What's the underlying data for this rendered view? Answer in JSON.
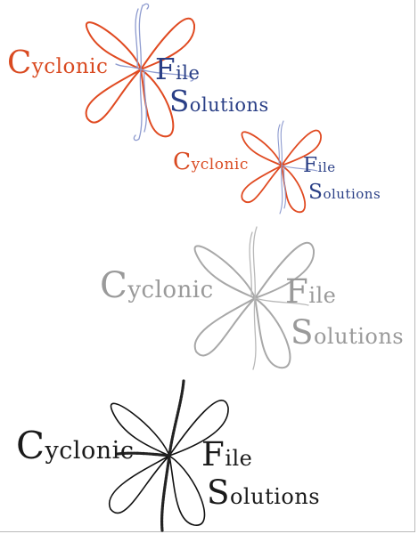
{
  "logos": [
    {
      "variant": "color-large",
      "colors": {
        "text_primary": "#d94a21",
        "text_secondary": "#2a3f86",
        "petals": "#e04a21",
        "accents": "#8e9bcf"
      },
      "icon": "cyclone-petal-icon",
      "word1": "Cyclonic",
      "word2": "File",
      "word3": "Solutions"
    },
    {
      "variant": "color-small",
      "colors": {
        "text_primary": "#d94a21",
        "text_secondary": "#2a3f86",
        "petals": "#e04a21",
        "accents": "#8e9bcf"
      },
      "icon": "cyclone-petal-icon",
      "word1": "Cyclonic",
      "word2": "File",
      "word3": "Solutions"
    },
    {
      "variant": "grayscale",
      "colors": {
        "text_primary": "#9a9a9a",
        "text_secondary": "#9a9a9a",
        "petals": "#a8a8a8",
        "accents": "#b8b8b8"
      },
      "icon": "cyclone-petal-icon",
      "word1": "Cyclonic",
      "word2": "File",
      "word3": "Solutions"
    },
    {
      "variant": "black",
      "colors": {
        "text_primary": "#1a1a1a",
        "text_secondary": "#1a1a1a",
        "petals": "#111111",
        "accents": "#222222"
      },
      "icon": "cyclone-petal-icon",
      "word1": "Cyclonic",
      "word2": "File",
      "word3": "Solutions"
    }
  ]
}
